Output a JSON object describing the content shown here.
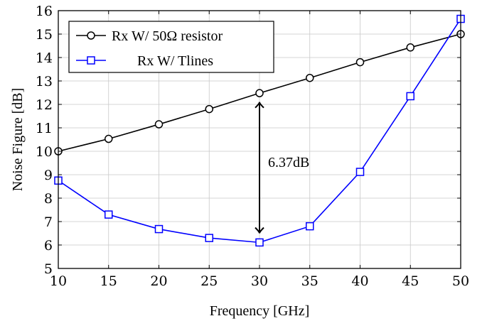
{
  "chart_data": {
    "type": "line",
    "xlabel": "Frequency [GHz]",
    "ylabel": "Noise Figure [dB]",
    "xlim": [
      10,
      50
    ],
    "ylim": [
      5,
      16
    ],
    "x_ticks": [
      "10",
      "15",
      "20",
      "25",
      "30",
      "35",
      "40",
      "45",
      "50"
    ],
    "y_ticks": [
      "5",
      "6",
      "7",
      "8",
      "9",
      "10",
      "11",
      "12",
      "13",
      "14",
      "15",
      "16"
    ],
    "grid": true,
    "legend_position": "top-left",
    "x": [
      10,
      15,
      20,
      25,
      30,
      35,
      40,
      45,
      50
    ],
    "series": [
      {
        "name": "Rx W/ 50Ω resistor",
        "color": "#000000",
        "marker": "circle",
        "values": [
          10.0,
          10.53,
          11.15,
          11.8,
          12.48,
          13.13,
          13.8,
          14.43,
          15.0
        ]
      },
      {
        "name": "Rx W/ Tlines",
        "color": "#0000ff",
        "marker": "square",
        "values": [
          8.75,
          7.3,
          6.68,
          6.3,
          6.11,
          6.8,
          9.12,
          12.35,
          15.65
        ]
      }
    ],
    "annotation": {
      "text": "6.37dB",
      "x": 30,
      "y_from": 12.1,
      "y_to": 6.5
    }
  }
}
